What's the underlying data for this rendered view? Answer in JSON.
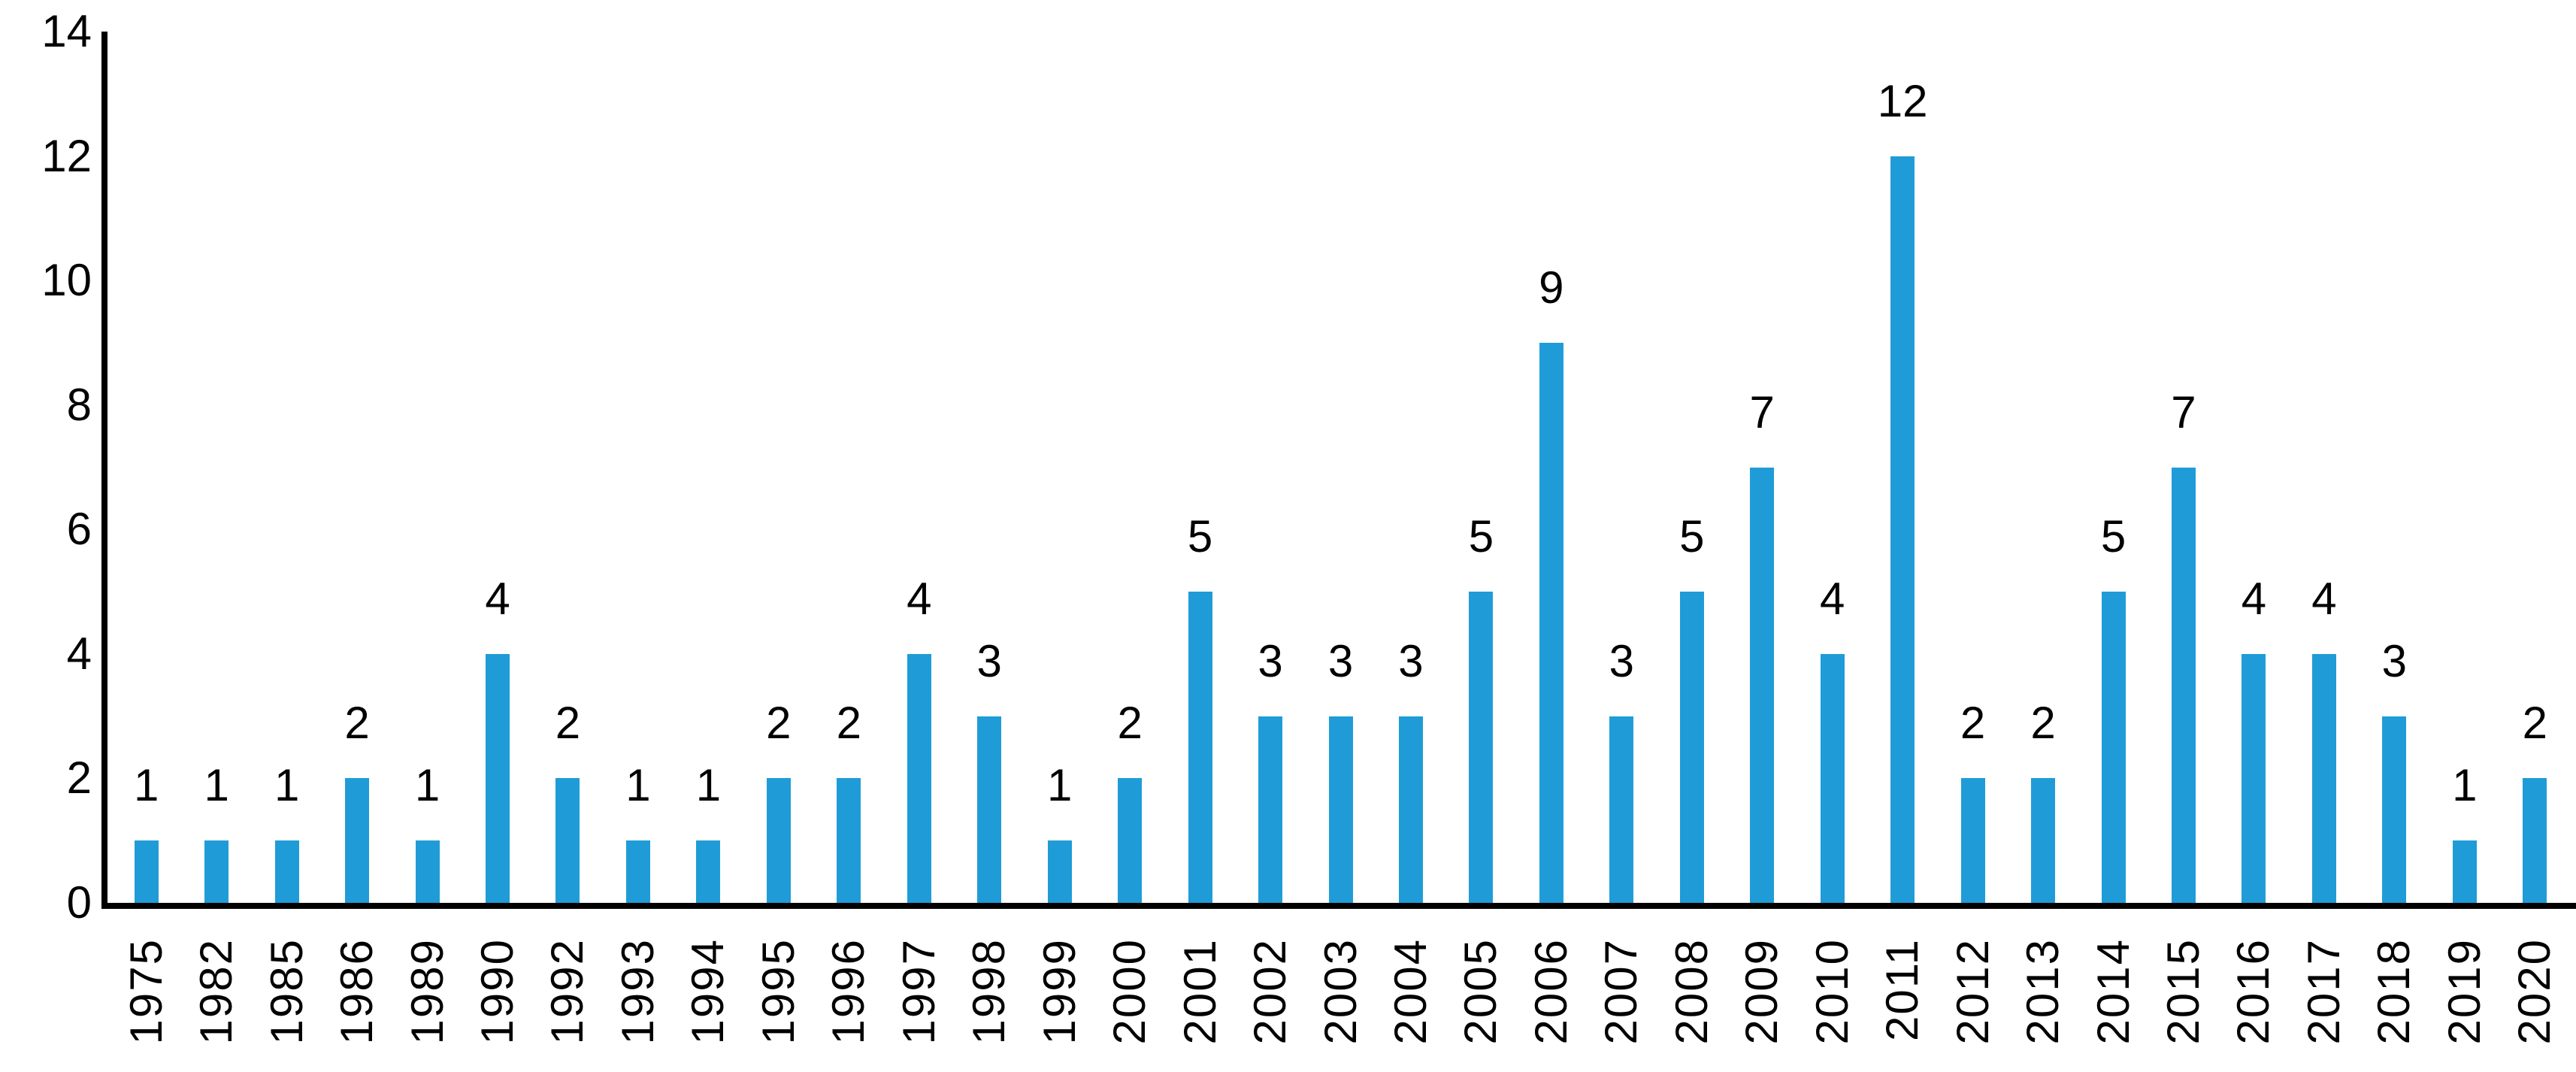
{
  "chart_data": {
    "type": "bar",
    "title": "",
    "xlabel": "",
    "ylabel": "",
    "categories": [
      "1975",
      "1982",
      "1985",
      "1986",
      "1989",
      "1990",
      "1992",
      "1993",
      "1994",
      "1995",
      "1996",
      "1997",
      "1998",
      "1999",
      "2000",
      "2001",
      "2002",
      "2003",
      "2004",
      "2005",
      "2006",
      "2007",
      "2008",
      "2009",
      "2010",
      "2011",
      "2012",
      "2013",
      "2014",
      "2015",
      "2016",
      "2017",
      "2018",
      "2019",
      "2020"
    ],
    "values": [
      1,
      1,
      1,
      2,
      1,
      4,
      2,
      1,
      1,
      2,
      2,
      4,
      3,
      1,
      2,
      5,
      3,
      3,
      3,
      5,
      9,
      3,
      5,
      7,
      4,
      12,
      2,
      2,
      5,
      7,
      4,
      4,
      3,
      1,
      2
    ],
    "ylim": [
      0,
      14
    ],
    "yticks": [
      0,
      2,
      4,
      6,
      8,
      10,
      12,
      14
    ],
    "grid": false,
    "legend": null,
    "data_labels": true,
    "x_tick_rotation_degrees": 90,
    "colors": {
      "bar": "#1F9CD7",
      "axis": "#000000",
      "text": "#000000",
      "background": "#ffffff"
    }
  }
}
